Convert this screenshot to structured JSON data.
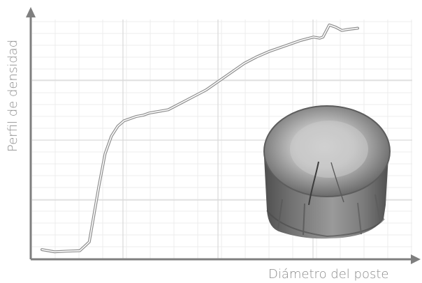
{
  "chart_data": {
    "type": "line",
    "title": "",
    "xlabel": "Diámetro del poste",
    "ylabel": "Perfil de densidad",
    "xlim": [
      0,
      100
    ],
    "ylim": [
      0,
      100
    ],
    "grid": true,
    "x_ticks_labeled": false,
    "y_ticks_labeled": false,
    "series": [
      {
        "name": "",
        "x": [
          0,
          4,
          8,
          12,
          15,
          18,
          20,
          22,
          24,
          26,
          28,
          30,
          32,
          34,
          36,
          40,
          44,
          48,
          52,
          56,
          60,
          64,
          68,
          72,
          75,
          78,
          82,
          86,
          88,
          89,
          91,
          93,
          95,
          97,
          100
        ],
        "y": [
          2.5,
          1.5,
          1.8,
          2.0,
          6.0,
          31.0,
          46.0,
          54.0,
          58.5,
          61.0,
          62.0,
          63.0,
          63.5,
          64.5,
          65.0,
          66.0,
          69.0,
          72.0,
          75.0,
          79.0,
          83.0,
          87.0,
          90.0,
          92.5,
          94.0,
          95.5,
          97.5,
          99.0,
          98.5,
          99.0,
          104.5,
          103.5,
          102.0,
          102.5,
          103.0
        ]
      }
    ]
  },
  "colors": {
    "axis": "#7f7f7f",
    "grid_major": "#d9d9d9",
    "grid_minor": "#ececec",
    "line": "#8e8e8e"
  },
  "icons": {
    "wood_log": "wood-log-icon"
  }
}
